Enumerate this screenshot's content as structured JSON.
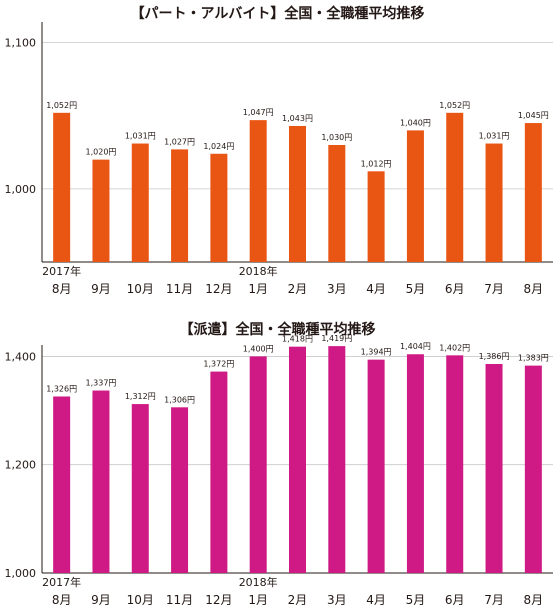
{
  "chart_data": [
    {
      "type": "bar",
      "title": "【パート・アルバイト】全国・全職種平均推移",
      "categories": [
        "8月",
        "9月",
        "10月",
        "11月",
        "12月",
        "1月",
        "2月",
        "3月",
        "4月",
        "5月",
        "6月",
        "7月",
        "8月"
      ],
      "years": [
        {
          "index": 0,
          "label": "2017年"
        },
        {
          "index": 5,
          "label": "2018年"
        }
      ],
      "values": [
        1052,
        1020,
        1031,
        1027,
        1024,
        1047,
        1043,
        1030,
        1012,
        1040,
        1052,
        1031,
        1045
      ],
      "data_labels": [
        "1,052円",
        "1,020円",
        "1,031円",
        "1,027円",
        "1,024円",
        "1,047円",
        "1,043円",
        "1,030円",
        "1,012円",
        "1,040円",
        "1,052円",
        "1,031円",
        "1,045円"
      ],
      "ylim": [
        950,
        1110
      ],
      "yticks": [
        1000,
        1100
      ],
      "ytick_labels": [
        "1,000",
        "1,100"
      ],
      "xlabel": "",
      "ylabel": "",
      "grid": true,
      "color": "#e95513"
    },
    {
      "type": "bar",
      "title": "【派遣】全国・全職種平均推移",
      "categories": [
        "8月",
        "9月",
        "10月",
        "11月",
        "12月",
        "1月",
        "2月",
        "3月",
        "4月",
        "5月",
        "6月",
        "7月",
        "8月"
      ],
      "years": [
        {
          "index": 0,
          "label": "2017年"
        },
        {
          "index": 5,
          "label": "2018年"
        }
      ],
      "values": [
        1326,
        1337,
        1312,
        1306,
        1372,
        1400,
        1418,
        1419,
        1394,
        1404,
        1402,
        1386,
        1383
      ],
      "data_labels": [
        "1,326円",
        "1,337円",
        "1,312円",
        "1,306円",
        "1,372円",
        "1,400円",
        "1,418円",
        "1,419円",
        "1,394円",
        "1,404円",
        "1,402円",
        "1,386円",
        "1,383円"
      ],
      "ylim": [
        1000,
        1410
      ],
      "yticks": [
        1000,
        1200,
        1400
      ],
      "ytick_labels": [
        "1,000",
        "1,200",
        "1,400"
      ],
      "xlabel": "",
      "ylabel": "",
      "grid": true,
      "color": "#cf1a85"
    }
  ]
}
